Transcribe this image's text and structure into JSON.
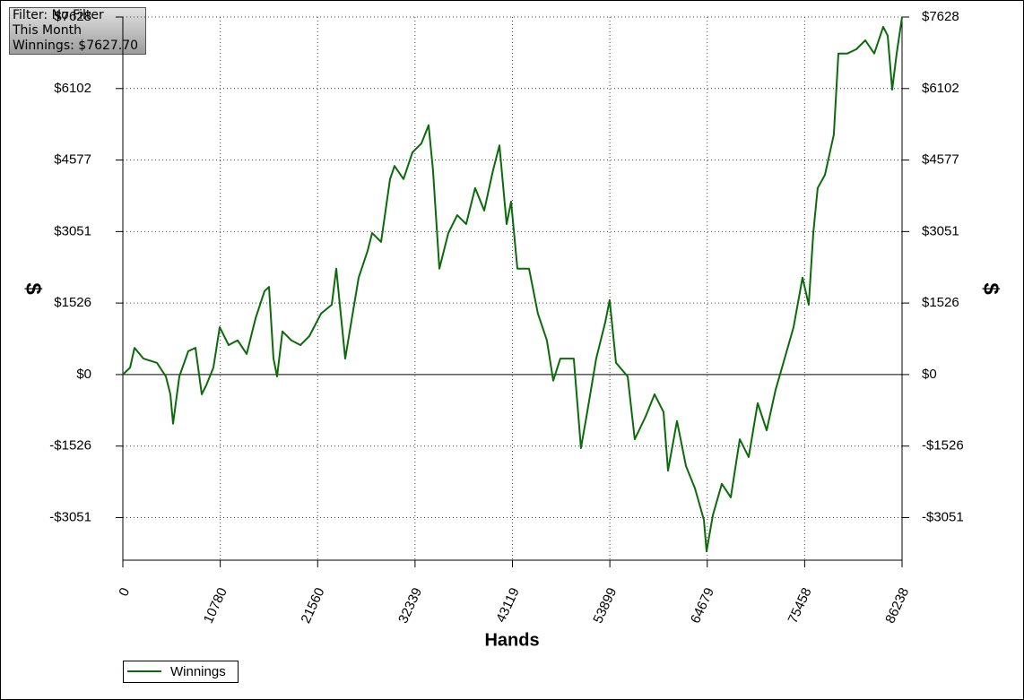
{
  "chart_data": {
    "type": "line",
    "info": [
      "Filter: No Filter",
      "This Month",
      "Winnings: $7627.70"
    ],
    "xlabel": "Hands",
    "ylabel": "$",
    "y2label": "$",
    "xlim": [
      0,
      86238
    ],
    "xticks": [
      0,
      10780,
      21560,
      32339,
      43119,
      53899,
      64679,
      75458,
      86238
    ],
    "ylim": [
      -3960,
      7628
    ],
    "yticks": [
      {
        "value": -3051,
        "label": "-$3051"
      },
      {
        "value": -1526,
        "label": "-$1526"
      },
      {
        "value": 0,
        "label": "$0"
      },
      {
        "value": 1526,
        "label": "$1526"
      },
      {
        "value": 3051,
        "label": "$3051"
      },
      {
        "value": 4577,
        "label": "$4577"
      },
      {
        "value": 6102,
        "label": "$6102"
      },
      {
        "value": 7628,
        "label": "$7628"
      }
    ],
    "y2lim": [
      -3960,
      7628
    ],
    "y2ticks": [
      {
        "value": -3051,
        "label": "-$3051"
      },
      {
        "value": -1526,
        "label": "-$1526"
      },
      {
        "value": 0,
        "label": "$0"
      },
      {
        "value": 1526,
        "label": "$1526"
      },
      {
        "value": 3051,
        "label": "$3051"
      },
      {
        "value": 4577,
        "label": "$4577"
      },
      {
        "value": 6102,
        "label": "$6102"
      },
      {
        "value": 7628,
        "label": "$7628"
      }
    ],
    "grid": true,
    "legend": "bottom-left",
    "x": [
      0,
      800,
      1290,
      2280,
      3770,
      4760,
      5260,
      5560,
      6250,
      7240,
      8040,
      8730,
      9230,
      10020,
      10720,
      11710,
      12700,
      13700,
      14690,
      15680,
      16180,
      16670,
      17070,
      17660,
      18650,
      19650,
      20640,
      21930,
      23120,
      23620,
      24610,
      25110,
      26100,
      27090,
      27590,
      28580,
      29570,
      30070,
      31060,
      32050,
      33040,
      33840,
      34330,
      35030,
      36020,
      37010,
      38000,
      38990,
      39990,
      40980,
      41680,
      42470,
      42970,
      43660,
      44950,
      45940,
      46930,
      47630,
      48420,
      49910,
      50700,
      51400,
      52390,
      53380,
      53880,
      54580,
      55870,
      56660,
      57850,
      58850,
      59840,
      60340,
      61330,
      62320,
      63320,
      64310,
      64600,
      65300,
      66290,
      67280,
      68280,
      69270,
      70260,
      71250,
      72240,
      73240,
      74230,
      75220,
      75910,
      76410,
      76900,
      77700,
      78690,
      79190,
      80180,
      81170,
      82170,
      83160,
      84150,
      84650,
      85150,
      85640,
      86238
    ],
    "series": [
      {
        "name": "Winnings",
        "color": "#0b6b0b",
        "values": [
          0,
          150,
          570,
          340,
          250,
          -40,
          -420,
          -1050,
          -40,
          500,
          570,
          -420,
          -230,
          150,
          1010,
          630,
          730,
          440,
          1200,
          1780,
          1870,
          340,
          -40,
          920,
          730,
          630,
          820,
          1300,
          1490,
          2260,
          340,
          920,
          2070,
          2640,
          3020,
          2830,
          4170,
          4450,
          4170,
          4740,
          4930,
          5320,
          4360,
          2260,
          3020,
          3400,
          3210,
          3980,
          3500,
          4360,
          4890,
          3210,
          3690,
          2260,
          2260,
          1300,
          730,
          -130,
          340,
          340,
          -1570,
          -800,
          340,
          1110,
          1590,
          250,
          -40,
          -1380,
          -900,
          -420,
          -800,
          -2050,
          -990,
          -1950,
          -2430,
          -3100,
          -3770,
          -3000,
          -2330,
          -2620,
          -1380,
          -1760,
          -610,
          -1190,
          -330,
          340,
          1010,
          2070,
          1490,
          3020,
          3980,
          4260,
          5120,
          6850,
          6850,
          6940,
          7130,
          6850,
          7420,
          7230,
          6080,
          6850,
          7627.7
        ]
      }
    ]
  }
}
